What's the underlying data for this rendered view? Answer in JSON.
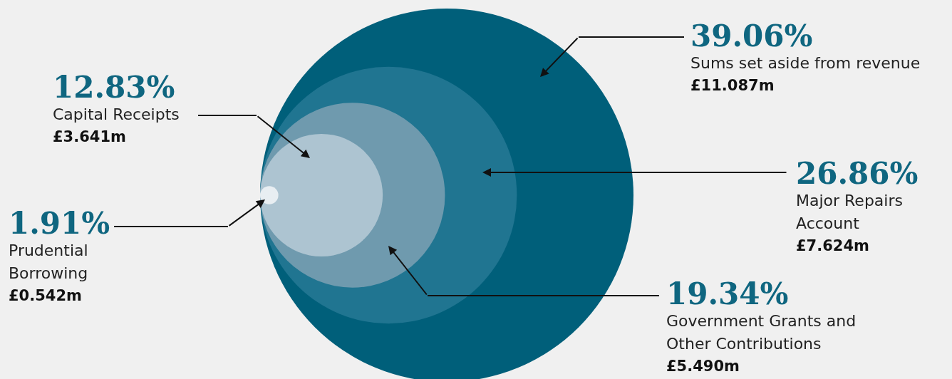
{
  "chart_data": {
    "type": "other",
    "categories": [
      "Sums set aside from revenue",
      "Major Repairs Account",
      "Government Grants and Other Contributions",
      "Capital Receipts",
      "Prudential Borrowing"
    ],
    "values": [
      39.06,
      26.86,
      19.34,
      12.83,
      1.91
    ],
    "value_labels": [
      "39.06%",
      "26.86%",
      "19.34%",
      "12.83%",
      "1.91%"
    ],
    "colors": [
      "#005f7a",
      "#207591",
      "#6f9aae",
      "#adc4d1",
      "#e8eef2"
    ],
    "annotations": [
      "£11.087m",
      "£7.624m",
      "£5.490m",
      "£3.641m",
      "£0.542m"
    ]
  }
}
